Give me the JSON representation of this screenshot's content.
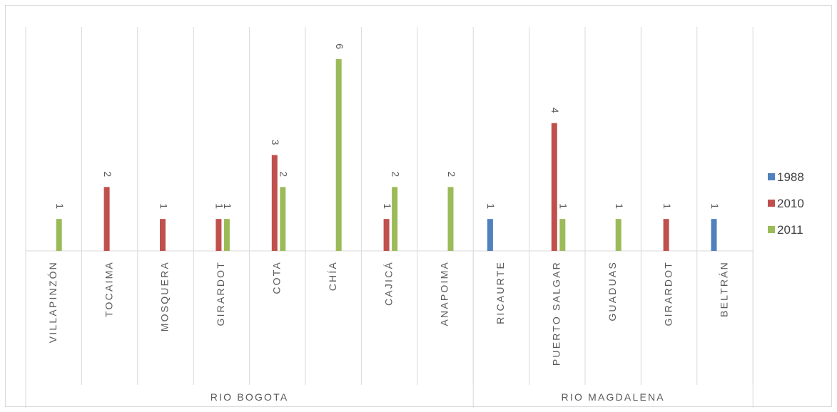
{
  "chart_data": {
    "type": "bar",
    "title": "",
    "xlabel": "",
    "ylabel": "",
    "ylim": [
      0,
      6
    ],
    "grid": "vertical",
    "legend_position": "right",
    "categories": [
      "VILLAPINZÓN",
      "TOCAIMA",
      "MOSQUERA",
      "GIRARDOT",
      "COTA",
      "CHÍA",
      "CAJICÁ",
      "ANAPOIMA",
      "RICAURTE",
      "PUERTO SALGAR",
      "GUADUAS",
      "GIRARDOT",
      "BELTRÁN"
    ],
    "groups": [
      {
        "label": "RIO BOGOTA",
        "start": 0,
        "end": 7
      },
      {
        "label": "RIO MAGDALENA",
        "start": 8,
        "end": 12
      }
    ],
    "series": [
      {
        "name": "1988",
        "color": "#4f81bd",
        "values": [
          null,
          null,
          null,
          null,
          null,
          null,
          null,
          null,
          1,
          null,
          null,
          null,
          1
        ]
      },
      {
        "name": "2010",
        "color": "#c0504d",
        "values": [
          null,
          2,
          1,
          1,
          3,
          null,
          1,
          null,
          null,
          4,
          null,
          1,
          null
        ]
      },
      {
        "name": "2011",
        "color": "#9bbb59",
        "values": [
          1,
          null,
          null,
          1,
          2,
          6,
          2,
          2,
          null,
          1,
          1,
          null,
          null
        ]
      }
    ]
  }
}
